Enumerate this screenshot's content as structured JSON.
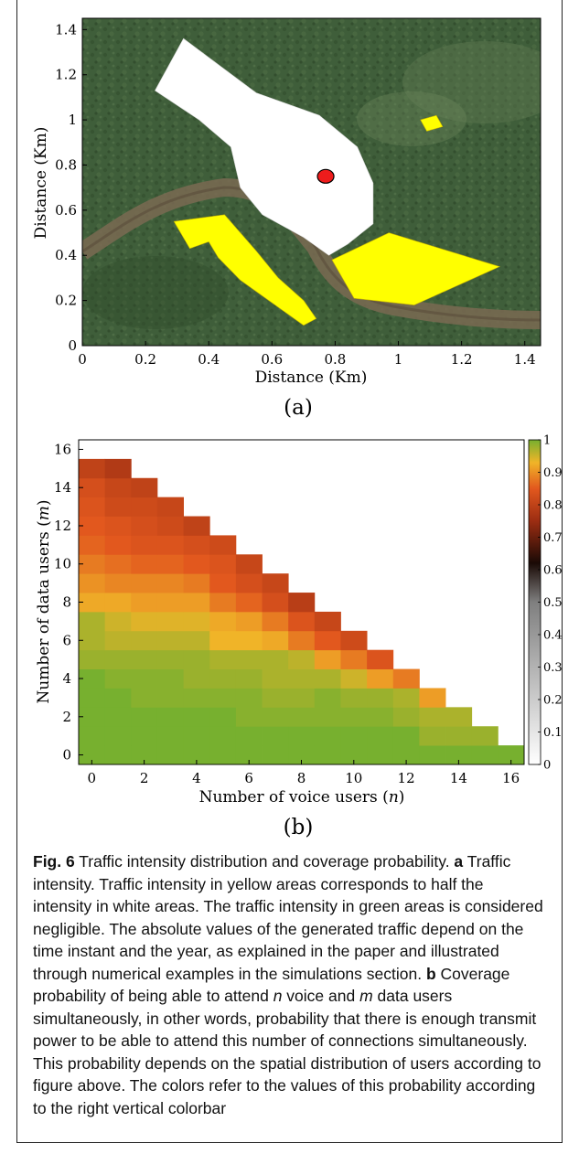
{
  "chart_data": [
    {
      "type": "map",
      "panel_label": "(a)",
      "xlabel": "Distance (Km)",
      "ylabel": "Distance (Km)",
      "xlim": [
        0,
        1.45
      ],
      "ylim": [
        0,
        1.45
      ],
      "xticks": [
        0,
        0.2,
        0.4,
        0.6,
        0.8,
        1,
        1.2,
        1.4
      ],
      "yticks": [
        0,
        0.2,
        0.4,
        0.6,
        0.8,
        1,
        1.2,
        1.4
      ],
      "tick_labels": [
        "0",
        "0.2",
        "0.4",
        "0.6",
        "0.8",
        "1",
        "1.2",
        "1.4"
      ],
      "colors": {
        "white_area": "#ffffff",
        "yellow_area": "#ffff00",
        "background": "#3f5e3a",
        "marker": "#ee1c1c"
      },
      "regions": [
        {
          "kind": "white",
          "points": [
            [
              0.23,
              1.13
            ],
            [
              0.32,
              1.36
            ],
            [
              0.55,
              1.12
            ],
            [
              0.75,
              1.02
            ],
            [
              0.87,
              0.88
            ],
            [
              0.92,
              0.72
            ],
            [
              0.92,
              0.54
            ],
            [
              0.84,
              0.45
            ],
            [
              0.78,
              0.4
            ],
            [
              0.7,
              0.48
            ],
            [
              0.57,
              0.58
            ],
            [
              0.5,
              0.7
            ],
            [
              0.47,
              0.88
            ],
            [
              0.37,
              1.0
            ]
          ]
        },
        {
          "kind": "yellow",
          "points": [
            [
              0.29,
              0.55
            ],
            [
              0.45,
              0.58
            ],
            [
              0.55,
              0.42
            ],
            [
              0.62,
              0.3
            ],
            [
              0.7,
              0.2
            ],
            [
              0.74,
              0.12
            ],
            [
              0.7,
              0.09
            ],
            [
              0.62,
              0.17
            ],
            [
              0.5,
              0.29
            ],
            [
              0.43,
              0.39
            ],
            [
              0.4,
              0.46
            ],
            [
              0.34,
              0.43
            ]
          ]
        },
        {
          "kind": "yellow",
          "points": [
            [
              0.79,
              0.38
            ],
            [
              0.97,
              0.5
            ],
            [
              1.32,
              0.35
            ],
            [
              1.05,
              0.18
            ],
            [
              0.86,
              0.21
            ]
          ]
        },
        {
          "kind": "yellow",
          "points": [
            [
              1.07,
              1.0
            ],
            [
              1.12,
              1.02
            ],
            [
              1.14,
              0.97
            ],
            [
              1.09,
              0.95
            ]
          ]
        }
      ],
      "marker": {
        "x": 0.77,
        "y": 0.75
      }
    },
    {
      "type": "heatmap",
      "panel_label": "(b)",
      "xlabel": "Number of voice users (n)",
      "ylabel": "Number of data users (m)",
      "xlim": [
        -0.5,
        16.5
      ],
      "ylim": [
        -0.5,
        16.5
      ],
      "xticks": [
        0,
        2,
        4,
        6,
        8,
        10,
        12,
        14,
        16
      ],
      "yticks": [
        0,
        2,
        4,
        6,
        8,
        10,
        12,
        14,
        16
      ],
      "colorbar": {
        "min": 0,
        "max": 1,
        "ticks": [
          0,
          0.1,
          0.2,
          0.3,
          0.4,
          0.5,
          0.6,
          0.7,
          0.8,
          0.9,
          1
        ]
      },
      "values_by_m": [
        [
          1,
          1,
          1,
          1,
          1,
          1,
          1,
          1,
          1,
          1,
          1,
          1,
          1,
          1,
          1,
          1,
          1
        ],
        [
          1,
          1,
          1,
          1,
          1,
          1,
          1,
          1,
          1,
          1,
          1,
          1,
          1,
          0.98,
          0.98,
          0.98
        ],
        [
          1,
          1,
          1,
          1,
          1,
          1,
          0.99,
          0.99,
          0.99,
          0.99,
          0.99,
          0.99,
          0.98,
          0.97,
          0.97
        ],
        [
          1,
          1,
          0.99,
          0.99,
          0.99,
          0.99,
          0.99,
          0.98,
          0.98,
          0.99,
          0.98,
          0.98,
          0.97,
          0.91
        ],
        [
          1,
          0.99,
          0.99,
          0.99,
          0.98,
          0.98,
          0.98,
          0.97,
          0.97,
          0.97,
          0.95,
          0.91,
          0.88
        ],
        [
          0.98,
          0.98,
          0.98,
          0.98,
          0.98,
          0.97,
          0.97,
          0.97,
          0.96,
          0.91,
          0.88,
          0.84
        ],
        [
          0.97,
          0.96,
          0.96,
          0.96,
          0.96,
          0.93,
          0.93,
          0.92,
          0.88,
          0.85,
          0.82
        ],
        [
          0.97,
          0.95,
          0.94,
          0.94,
          0.94,
          0.92,
          0.91,
          0.88,
          0.84,
          0.81
        ],
        [
          0.92,
          0.92,
          0.91,
          0.91,
          0.91,
          0.88,
          0.86,
          0.83,
          0.79
        ],
        [
          0.9,
          0.89,
          0.89,
          0.89,
          0.88,
          0.85,
          0.83,
          0.81
        ],
        [
          0.88,
          0.87,
          0.86,
          0.86,
          0.85,
          0.84,
          0.81
        ],
        [
          0.86,
          0.85,
          0.84,
          0.84,
          0.83,
          0.82
        ],
        [
          0.85,
          0.84,
          0.83,
          0.82,
          0.8
        ],
        [
          0.84,
          0.82,
          0.82,
          0.81
        ],
        [
          0.83,
          0.81,
          0.8
        ],
        [
          0.8,
          0.78
        ]
      ]
    }
  ],
  "caption": {
    "fig_label": "Fig. 6",
    "title": " Traffic intensity distribution and coverage probability. ",
    "part_a_label": "a",
    "part_a_text": " Traffic intensity. Traffic intensity in yellow areas corresponds to half the intensity in white areas. The traffic intensity in green areas is considered negligible. The absolute values of the generated traffic depend on the time instant and the year, as explained in the paper and illustrated through numerical examples in the simulations section. ",
    "part_b_label": "b",
    "part_b_text_1": " Coverage probability of being able to attend ",
    "var_n": "n",
    "part_b_text_2": " voice and ",
    "var_m": "m",
    "part_b_text_3": " data users simultaneously, in other words, probability that there is enough transmit power to be able to attend this number of connections simultaneously. This probability depends on the spatial distribution of users according to figure above. The colors refer to the values of this probability according to the right vertical colorbar"
  }
}
